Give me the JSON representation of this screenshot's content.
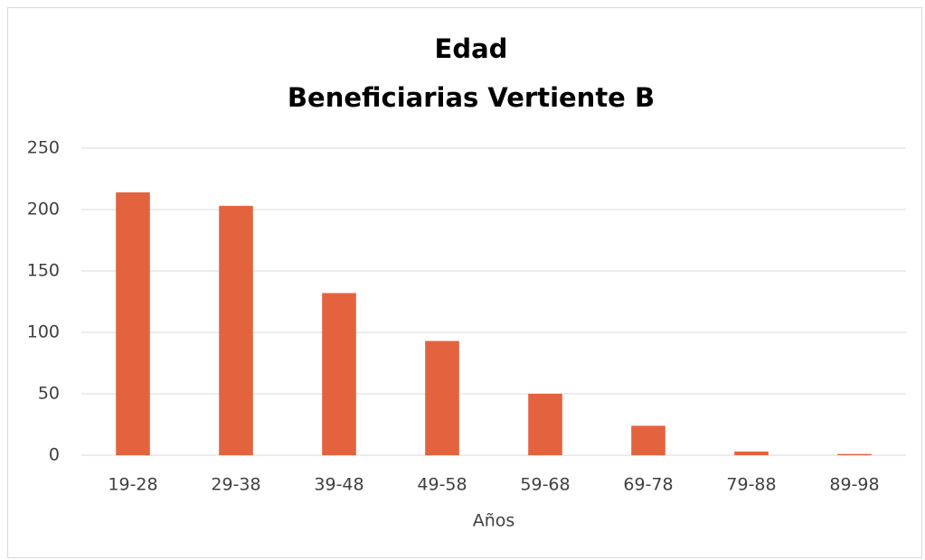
{
  "chart_data": {
    "type": "bar",
    "title": [
      "Edad",
      "Beneficiarias Vertiente B"
    ],
    "x_label": "Años",
    "categories": [
      "19-28",
      "29-38",
      "39-48",
      "49-58",
      "59-68",
      "69-78",
      "79-88",
      "89-98"
    ],
    "values": [
      214,
      203,
      132,
      93,
      50,
      24,
      3,
      1
    ],
    "color": "#e4633f",
    "ylim": [
      0,
      250
    ],
    "yticks": [
      0,
      50,
      100,
      150,
      200,
      250
    ],
    "grid": true
  }
}
